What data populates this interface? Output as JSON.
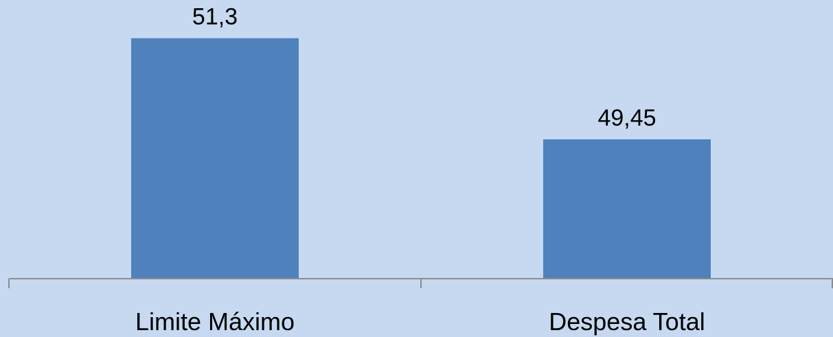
{
  "chart_data": {
    "type": "bar",
    "categories": [
      "Limite Máximo",
      "Despesa Total"
    ],
    "values": [
      51.3,
      49.45
    ],
    "value_labels": [
      "51,3",
      "49,45"
    ],
    "title": "",
    "xlabel": "",
    "ylabel": "",
    "ylim": [
      46.9,
      52.0
    ],
    "grid": false,
    "legend": "none",
    "colors": {
      "background": "#c6d9f1",
      "bar": "#4f81bd",
      "axis": "#8c8c8c",
      "text": "#000000"
    }
  }
}
